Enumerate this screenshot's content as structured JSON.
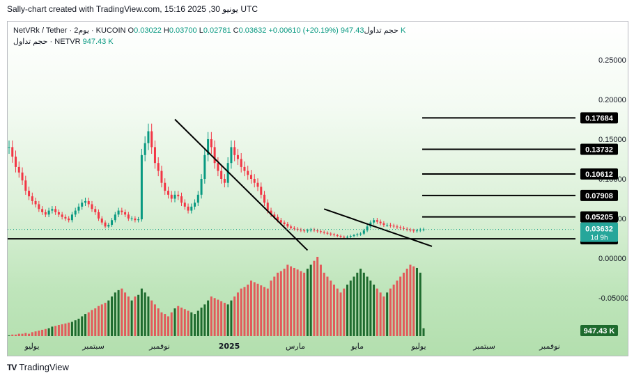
{
  "header": {
    "title": "Sally-chart created with TradingView.com, 15:16 2025 ,30 يونيو UTC"
  },
  "legend": {
    "symbol": "NetVRk / Tether · يوم2 · KUCOIN",
    "open_label": "O",
    "open": "0.03022",
    "high_label": "H",
    "high": "0.03700",
    "low_label": "L",
    "low": "0.02781",
    "close_label": "C",
    "close": "0.03632",
    "change": "+0.00610 (+20.19%)",
    "volume_label": "حجم تداول",
    "volume": "947.43 K",
    "volume_line_label": "حجم تداول · NETVR",
    "volume_line_value": "947.43 K"
  },
  "footer": {
    "logo_text": "TradingView"
  },
  "colors": {
    "up": "#089981",
    "down": "#f23645",
    "vol_up": "#1e6b2e",
    "vol_down": "#e25a5a",
    "line": "#000000"
  },
  "chart_data": {
    "type": "candlestick",
    "symbol": "NETVR/USDT",
    "y_axis_ticks": [
      "0.25000",
      "0.20000",
      "0.15000",
      "0.10000",
      "0.05000",
      "0.00000",
      "-0.05000"
    ],
    "y_ticks_values": [
      0.25,
      0.2,
      0.15,
      0.1,
      0.05,
      0.0,
      -0.05
    ],
    "x_tick_labels": [
      "يوليو",
      "سبتمبر",
      "نوفمبر",
      "2025",
      "مارس",
      "مايو",
      "يوليو",
      "سبتمبر",
      "نوفمبر"
    ],
    "price_labels": [
      {
        "text": "0.17684",
        "value": 0.17684
      },
      {
        "text": "0.13732",
        "value": 0.13732
      },
      {
        "text": "0.10612",
        "value": 0.10612
      },
      {
        "text": "0.07908",
        "value": 0.07908
      },
      {
        "text": "0.05205",
        "value": 0.05205
      },
      {
        "text": "0.02446",
        "value": 0.02446
      }
    ],
    "current_price": {
      "text": "0.03632",
      "countdown": "1d 9h",
      "value": 0.03632
    },
    "volume_label": "947.43 K",
    "horizontal_levels": [
      0.17684,
      0.13732,
      0.10612,
      0.07908,
      0.05205,
      0.02446
    ],
    "close_series": [
      0.14,
      0.128,
      0.115,
      0.108,
      0.098,
      0.085,
      0.078,
      0.072,
      0.068,
      0.062,
      0.058,
      0.055,
      0.06,
      0.062,
      0.058,
      0.055,
      0.052,
      0.05,
      0.048,
      0.055,
      0.06,
      0.065,
      0.07,
      0.072,
      0.068,
      0.062,
      0.058,
      0.05,
      0.045,
      0.04,
      0.042,
      0.048,
      0.055,
      0.06,
      0.058,
      0.055,
      0.05,
      0.05,
      0.048,
      0.049,
      0.13,
      0.145,
      0.16,
      0.14,
      0.12,
      0.11,
      0.095,
      0.085,
      0.08,
      0.075,
      0.08,
      0.078,
      0.07,
      0.065,
      0.06,
      0.065,
      0.07,
      0.08,
      0.1,
      0.13,
      0.15,
      0.14,
      0.12,
      0.11,
      0.1,
      0.095,
      0.12,
      0.14,
      0.13,
      0.125,
      0.115,
      0.11,
      0.105,
      0.1,
      0.095,
      0.09,
      0.08,
      0.07,
      0.06,
      0.055,
      0.052,
      0.048,
      0.045,
      0.043,
      0.04,
      0.038,
      0.037,
      0.036,
      0.035,
      0.034,
      0.035,
      0.036,
      0.035,
      0.034,
      0.033,
      0.032,
      0.031,
      0.03,
      0.029,
      0.028,
      0.027,
      0.026,
      0.027,
      0.028,
      0.029,
      0.03,
      0.031,
      0.035,
      0.04,
      0.045,
      0.048,
      0.046,
      0.044,
      0.042,
      0.042,
      0.041,
      0.04,
      0.039,
      0.038,
      0.037,
      0.036,
      0.035,
      0.034,
      0.035,
      0.036,
      0.03632
    ],
    "volume_series": [
      0.01,
      0.02,
      0.02,
      0.03,
      0.03,
      0.04,
      0.03,
      0.05,
      0.06,
      0.07,
      0.08,
      0.09,
      0.1,
      0.12,
      0.13,
      0.14,
      0.15,
      0.16,
      0.17,
      0.18,
      0.2,
      0.22,
      0.25,
      0.28,
      0.3,
      0.33,
      0.35,
      0.38,
      0.4,
      0.42,
      0.45,
      0.5,
      0.55,
      0.58,
      0.6,
      0.55,
      0.5,
      0.45,
      0.5,
      0.52,
      0.6,
      0.55,
      0.5,
      0.45,
      0.4,
      0.35,
      0.3,
      0.28,
      0.25,
      0.3,
      0.35,
      0.38,
      0.36,
      0.34,
      0.32,
      0.3,
      0.28,
      0.32,
      0.36,
      0.4,
      0.45,
      0.5,
      0.48,
      0.46,
      0.44,
      0.42,
      0.4,
      0.45,
      0.5,
      0.55,
      0.6,
      0.62,
      0.65,
      0.7,
      0.68,
      0.66,
      0.64,
      0.62,
      0.6,
      0.7,
      0.75,
      0.8,
      0.82,
      0.85,
      0.9,
      0.88,
      0.86,
      0.84,
      0.82,
      0.8,
      0.85,
      0.9,
      0.95,
      1.0,
      0.9,
      0.8,
      0.75,
      0.7,
      0.65,
      0.6,
      0.55,
      0.6,
      0.65,
      0.7,
      0.75,
      0.8,
      0.85,
      0.8,
      0.75,
      0.7,
      0.65,
      0.6,
      0.55,
      0.5,
      0.55,
      0.6,
      0.65,
      0.7,
      0.75,
      0.8,
      0.85,
      0.9,
      0.88,
      0.86,
      0.8,
      0.1
    ]
  }
}
